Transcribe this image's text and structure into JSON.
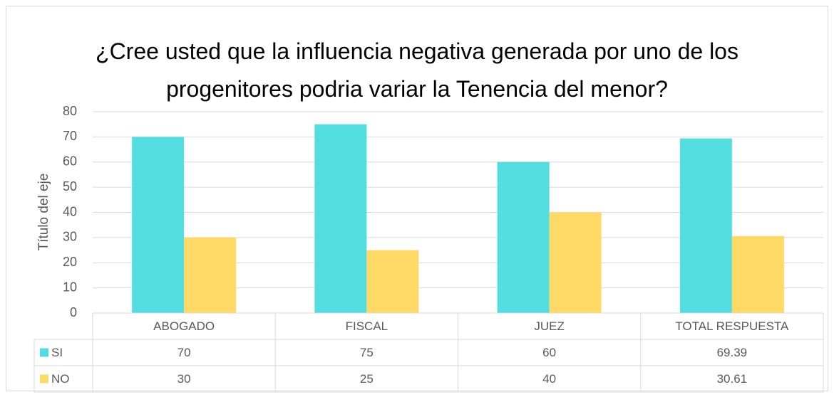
{
  "chart_data": {
    "type": "bar",
    "title": "¿Cree usted que la influencia negativa generada por uno de los progenitores podria variar la Tenencia del menor?",
    "y_axis_label": "Título del eje",
    "categories": [
      "ABOGADO",
      "FISCAL",
      "JUEZ",
      "TOTAL RESPUESTA"
    ],
    "series": [
      {
        "name": "SI",
        "color": "#52dde0",
        "values": [
          70,
          75,
          60,
          69.39
        ]
      },
      {
        "name": "NO",
        "color": "#ffd966",
        "values": [
          30,
          25,
          40,
          30.61
        ]
      }
    ],
    "ylim": [
      0,
      80
    ],
    "yticks": [
      0,
      10,
      20,
      30,
      40,
      50,
      60,
      70,
      80
    ],
    "grid": true,
    "data_table": true
  }
}
